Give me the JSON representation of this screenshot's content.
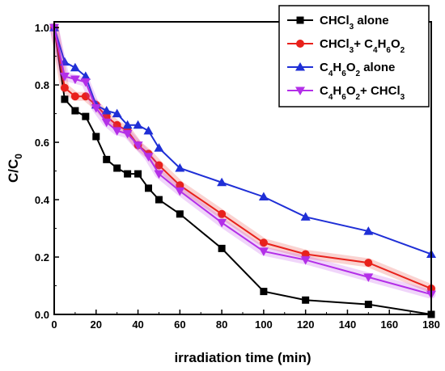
{
  "chart_data": {
    "type": "line",
    "xlabel": "irradiation time (min)",
    "ylabel": "C/C",
    "ylabel_sub": "0",
    "xlim": [
      0,
      180
    ],
    "ylim": [
      0.0,
      1.02
    ],
    "xticks": [
      0,
      20,
      40,
      60,
      80,
      100,
      120,
      140,
      160,
      180
    ],
    "yticks": [
      0.0,
      0.2,
      0.4,
      0.6,
      0.8,
      1.0
    ],
    "ytick_labels": [
      "0.0",
      "0.2",
      "0.4",
      "0.6",
      "0.8",
      "1.0"
    ],
    "grid": false,
    "legend_position": "top-right",
    "series": [
      {
        "name": "CHCl3 alone",
        "legend": [
          {
            "t": "CHCl"
          },
          {
            "t": "3",
            "s": "sub"
          },
          {
            "t": " alone"
          }
        ],
        "color": "#000000",
        "marker": "square",
        "halo": false,
        "x": [
          0,
          5,
          10,
          15,
          20,
          25,
          30,
          35,
          40,
          45,
          50,
          60,
          80,
          100,
          120,
          150,
          180
        ],
        "values": [
          1.0,
          0.75,
          0.71,
          0.69,
          0.62,
          0.54,
          0.51,
          0.49,
          0.49,
          0.44,
          0.4,
          0.35,
          0.23,
          0.08,
          0.05,
          0.035,
          0.0
        ]
      },
      {
        "name": "CHCl3+ C4H6O2",
        "legend": [
          {
            "t": "CHCl"
          },
          {
            "t": "3",
            "s": "sub"
          },
          {
            "t": "+ C"
          },
          {
            "t": "4",
            "s": "sub"
          },
          {
            "t": "H"
          },
          {
            "t": "6",
            "s": "sub"
          },
          {
            "t": "O"
          },
          {
            "t": "2",
            "s": "sub"
          }
        ],
        "color": "#e8211b",
        "marker": "circle",
        "halo": true,
        "x": [
          0,
          5,
          10,
          15,
          20,
          25,
          30,
          35,
          40,
          45,
          50,
          60,
          80,
          100,
          120,
          150,
          180
        ],
        "values": [
          1.0,
          0.79,
          0.76,
          0.76,
          0.73,
          0.69,
          0.66,
          0.64,
          0.59,
          0.56,
          0.52,
          0.45,
          0.35,
          0.25,
          0.21,
          0.18,
          0.09
        ]
      },
      {
        "name": "C4H6O2 alone",
        "legend": [
          {
            "t": "C"
          },
          {
            "t": "4",
            "s": "sub"
          },
          {
            "t": "H"
          },
          {
            "t": "6",
            "s": "sub"
          },
          {
            "t": "O"
          },
          {
            "t": "2",
            "s": "sub"
          },
          {
            "t": " alone"
          }
        ],
        "color": "#1f2fd6",
        "marker": "triangle-up",
        "halo": false,
        "x": [
          0,
          5,
          10,
          15,
          20,
          25,
          30,
          35,
          40,
          45,
          50,
          60,
          80,
          100,
          120,
          150,
          180
        ],
        "values": [
          1.0,
          0.88,
          0.86,
          0.83,
          0.73,
          0.71,
          0.7,
          0.66,
          0.66,
          0.64,
          0.58,
          0.51,
          0.46,
          0.41,
          0.34,
          0.29,
          0.21
        ]
      },
      {
        "name": "C4H6O2+ CHCl3",
        "legend": [
          {
            "t": "C"
          },
          {
            "t": "4",
            "s": "sub"
          },
          {
            "t": "H"
          },
          {
            "t": "6",
            "s": "sub"
          },
          {
            "t": "O"
          },
          {
            "t": "2",
            "s": "sub"
          },
          {
            "t": "+ CHCl"
          },
          {
            "t": "3",
            "s": "sub"
          }
        ],
        "color": "#b32fe8",
        "marker": "triangle-down",
        "halo": true,
        "x": [
          0,
          5,
          10,
          15,
          20,
          25,
          30,
          35,
          40,
          45,
          50,
          60,
          80,
          100,
          120,
          150,
          180
        ],
        "values": [
          1.0,
          0.83,
          0.82,
          0.81,
          0.72,
          0.67,
          0.64,
          0.63,
          0.59,
          0.55,
          0.49,
          0.43,
          0.32,
          0.22,
          0.19,
          0.13,
          0.07
        ]
      }
    ]
  }
}
